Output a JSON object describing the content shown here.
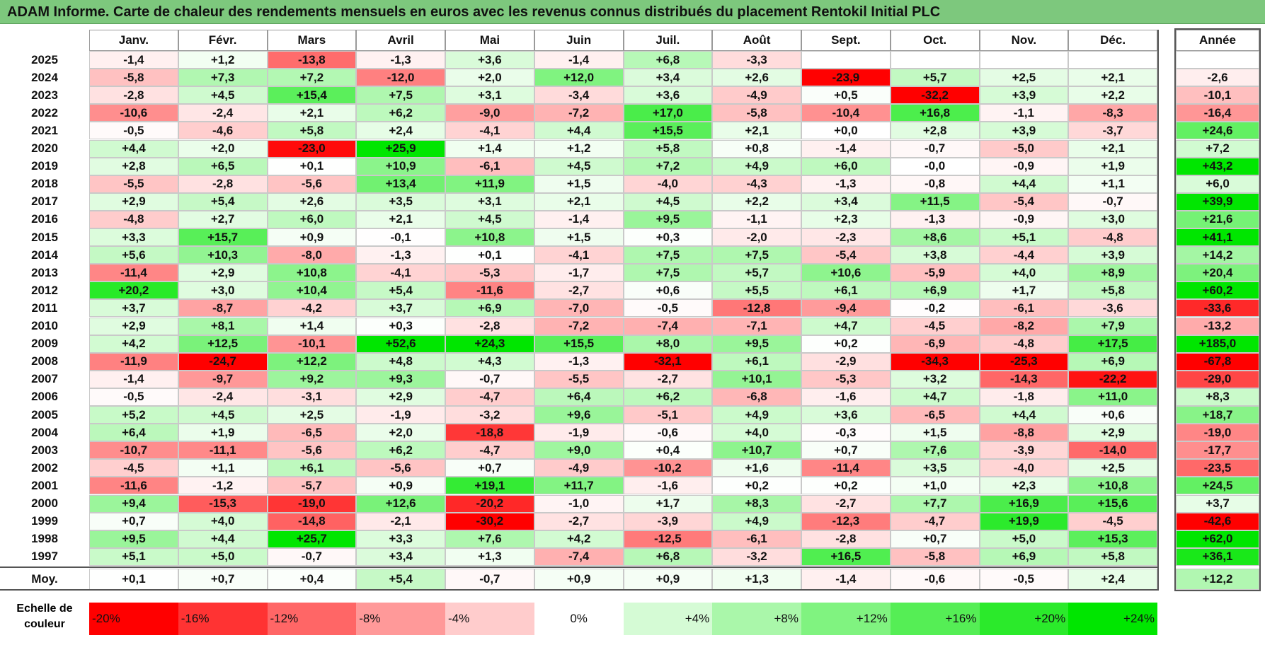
{
  "title": "ADAM Informe. Carte de chaleur des rendements mensuels en euros avec les revenus connus distribués du placement Rentokil Initial PLC",
  "chart_data": {
    "type": "heatmap",
    "title": "ADAM Informe. Carte de chaleur des rendements mensuels en euros avec les revenus connus distribués du placement Rentokil Initial PLC",
    "months": [
      "Janv.",
      "Févr.",
      "Mars",
      "Avril",
      "Mai",
      "Juin",
      "Juil.",
      "Août",
      "Sept.",
      "Oct.",
      "Nov.",
      "Déc."
    ],
    "annual_label": "Année",
    "average_label": "Moy.",
    "rows": [
      {
        "year": "2025",
        "values": [
          "-1,4",
          "+1,2",
          "-13,8",
          "-1,3",
          "+3,6",
          "-1,4",
          "+6,8",
          "-3,3",
          "",
          "",
          "",
          ""
        ],
        "annual": ""
      },
      {
        "year": "2024",
        "values": [
          "-5,8",
          "+7,3",
          "+7,2",
          "-12,0",
          "+2,0",
          "+12,0",
          "+3,4",
          "+2,6",
          "-23,9",
          "+5,7",
          "+2,5",
          "+2,1"
        ],
        "annual": "-2,6"
      },
      {
        "year": "2023",
        "values": [
          "-2,8",
          "+4,5",
          "+15,4",
          "+7,5",
          "+3,1",
          "-3,4",
          "+3,6",
          "-4,9",
          "+0,5",
          "-32,2",
          "+3,9",
          "+2,2"
        ],
        "annual": "-10,1"
      },
      {
        "year": "2022",
        "values": [
          "-10,6",
          "-2,4",
          "+2,1",
          "+6,2",
          "-9,0",
          "-7,2",
          "+17,0",
          "-5,8",
          "-10,4",
          "+16,8",
          "-1,1",
          "-8,3"
        ],
        "annual": "-16,4"
      },
      {
        "year": "2021",
        "values": [
          "-0,5",
          "-4,6",
          "+5,8",
          "+2,4",
          "-4,1",
          "+4,4",
          "+15,5",
          "+2,1",
          "+0,0",
          "+2,8",
          "+3,9",
          "-3,7"
        ],
        "annual": "+24,6"
      },
      {
        "year": "2020",
        "values": [
          "+4,4",
          "+2,0",
          "-23,0",
          "+25,9",
          "+1,4",
          "+1,2",
          "+5,8",
          "+0,8",
          "-1,4",
          "-0,7",
          "-5,0",
          "+2,1"
        ],
        "annual": "+7,2"
      },
      {
        "year": "2019",
        "values": [
          "+2,8",
          "+6,5",
          "+0,1",
          "+10,9",
          "-6,1",
          "+4,5",
          "+7,2",
          "+4,9",
          "+6,0",
          "-0,0",
          "-0,9",
          "+1,9"
        ],
        "annual": "+43,2"
      },
      {
        "year": "2018",
        "values": [
          "-5,5",
          "-2,8",
          "-5,6",
          "+13,4",
          "+11,9",
          "+1,5",
          "-4,0",
          "-4,3",
          "-1,3",
          "-0,8",
          "+4,4",
          "+1,1"
        ],
        "annual": "+6,0"
      },
      {
        "year": "2017",
        "values": [
          "+2,9",
          "+5,4",
          "+2,6",
          "+3,5",
          "+3,1",
          "+2,1",
          "+4,5",
          "+2,2",
          "+3,4",
          "+11,5",
          "-5,4",
          "-0,7"
        ],
        "annual": "+39,9"
      },
      {
        "year": "2016",
        "values": [
          "-4,8",
          "+2,7",
          "+6,0",
          "+2,1",
          "+4,5",
          "-1,4",
          "+9,5",
          "-1,1",
          "+2,3",
          "-1,3",
          "-0,9",
          "+3,0"
        ],
        "annual": "+21,6"
      },
      {
        "year": "2015",
        "values": [
          "+3,3",
          "+15,7",
          "+0,9",
          "-0,1",
          "+10,8",
          "+1,5",
          "+0,3",
          "-2,0",
          "-2,3",
          "+8,6",
          "+5,1",
          "-4,8"
        ],
        "annual": "+41,1"
      },
      {
        "year": "2014",
        "values": [
          "+5,6",
          "+10,3",
          "-8,0",
          "-1,3",
          "+0,1",
          "-4,1",
          "+7,5",
          "+7,5",
          "-5,4",
          "+3,8",
          "-4,4",
          "+3,9"
        ],
        "annual": "+14,2"
      },
      {
        "year": "2013",
        "values": [
          "-11,4",
          "+2,9",
          "+10,8",
          "-4,1",
          "-5,3",
          "-1,7",
          "+7,5",
          "+5,7",
          "+10,6",
          "-5,9",
          "+4,0",
          "+8,9"
        ],
        "annual": "+20,4"
      },
      {
        "year": "2012",
        "values": [
          "+20,2",
          "+3,0",
          "+10,4",
          "+5,4",
          "-11,6",
          "-2,7",
          "+0,6",
          "+5,5",
          "+6,1",
          "+6,9",
          "+1,7",
          "+5,8"
        ],
        "annual": "+60,2"
      },
      {
        "year": "2011",
        "values": [
          "+3,7",
          "-8,7",
          "-4,2",
          "+3,7",
          "+6,9",
          "-7,0",
          "-0,5",
          "-12,8",
          "-9,4",
          "-0,2",
          "-6,1",
          "-3,6"
        ],
        "annual": "-33,6"
      },
      {
        "year": "2010",
        "values": [
          "+2,9",
          "+8,1",
          "+1,4",
          "+0,3",
          "-2,8",
          "-7,2",
          "-7,4",
          "-7,1",
          "+4,7",
          "-4,5",
          "-8,2",
          "+7,9"
        ],
        "annual": "-13,2"
      },
      {
        "year": "2009",
        "values": [
          "+4,2",
          "+12,5",
          "-10,1",
          "+52,6",
          "+24,3",
          "+15,5",
          "+8,0",
          "+9,5",
          "+0,2",
          "-6,9",
          "-4,8",
          "+17,5"
        ],
        "annual": "+185,0"
      },
      {
        "year": "2008",
        "values": [
          "-11,9",
          "-24,7",
          "+12,2",
          "+4,8",
          "+4,3",
          "-1,3",
          "-32,1",
          "+6,1",
          "-2,9",
          "-34,3",
          "-25,3",
          "+6,9"
        ],
        "annual": "-67,8"
      },
      {
        "year": "2007",
        "values": [
          "-1,4",
          "-9,7",
          "+9,2",
          "+9,3",
          "-0,7",
          "-5,5",
          "-2,7",
          "+10,1",
          "-5,3",
          "+3,2",
          "-14,3",
          "-22,2"
        ],
        "annual": "-29,0"
      },
      {
        "year": "2006",
        "values": [
          "-0,5",
          "-2,4",
          "-3,1",
          "+2,9",
          "-4,7",
          "+6,4",
          "+6,2",
          "-6,8",
          "-1,6",
          "+4,7",
          "-1,8",
          "+11,0"
        ],
        "annual": "+8,3"
      },
      {
        "year": "2005",
        "values": [
          "+5,2",
          "+4,5",
          "+2,5",
          "-1,9",
          "-3,2",
          "+9,6",
          "-5,1",
          "+4,9",
          "+3,6",
          "-6,5",
          "+4,4",
          "+0,6"
        ],
        "annual": "+18,7"
      },
      {
        "year": "2004",
        "values": [
          "+6,4",
          "+1,9",
          "-6,5",
          "+2,0",
          "-18,8",
          "-1,9",
          "-0,6",
          "+4,0",
          "-0,3",
          "+1,5",
          "-8,8",
          "+2,9"
        ],
        "annual": "-19,0"
      },
      {
        "year": "2003",
        "values": [
          "-10,7",
          "-11,1",
          "-5,6",
          "+6,2",
          "-4,7",
          "+9,0",
          "+0,4",
          "+10,7",
          "+0,7",
          "+7,6",
          "-3,9",
          "-14,0"
        ],
        "annual": "-17,7"
      },
      {
        "year": "2002",
        "values": [
          "-4,5",
          "+1,1",
          "+6,1",
          "-5,6",
          "+0,7",
          "-4,9",
          "-10,2",
          "+1,6",
          "-11,4",
          "+3,5",
          "-4,0",
          "+2,5"
        ],
        "annual": "-23,5"
      },
      {
        "year": "2001",
        "values": [
          "-11,6",
          "-1,2",
          "-5,7",
          "+0,9",
          "+19,1",
          "+11,7",
          "-1,6",
          "+0,2",
          "+0,2",
          "+1,0",
          "+2,3",
          "+10,8"
        ],
        "annual": "+24,5"
      },
      {
        "year": "2000",
        "values": [
          "+9,4",
          "-15,3",
          "-19,0",
          "+12,6",
          "-20,2",
          "-1,0",
          "+1,7",
          "+8,3",
          "-2,7",
          "+7,7",
          "+16,9",
          "+15,6"
        ],
        "annual": "+3,7"
      },
      {
        "year": "1999",
        "values": [
          "+0,7",
          "+4,0",
          "-14,8",
          "-2,1",
          "-30,2",
          "-2,7",
          "-3,9",
          "+4,9",
          "-12,3",
          "-4,7",
          "+19,9",
          "-4,5"
        ],
        "annual": "-42,6"
      },
      {
        "year": "1998",
        "values": [
          "+9,5",
          "+4,4",
          "+25,7",
          "+3,3",
          "+7,6",
          "+4,2",
          "-12,5",
          "-6,1",
          "-2,8",
          "+0,7",
          "+5,0",
          "+15,3"
        ],
        "annual": "+62,0"
      },
      {
        "year": "1997",
        "values": [
          "+5,1",
          "+5,0",
          "-0,7",
          "+3,4",
          "+1,3",
          "-7,4",
          "+6,8",
          "-3,2",
          "+16,5",
          "-5,8",
          "+6,9",
          "+5,8"
        ],
        "annual": "+36,1"
      }
    ],
    "average": {
      "values": [
        "+0,1",
        "+0,7",
        "+0,4",
        "+5,4",
        "-0,7",
        "+0,9",
        "+0,9",
        "+1,3",
        "-1,4",
        "-0,6",
        "-0,5",
        "+2,4"
      ],
      "annual": "+12,2"
    },
    "color_scale": {
      "label_line1": "Echelle de",
      "label_line2": "couleur",
      "stops": [
        {
          "label": "-20%",
          "value": -20
        },
        {
          "label": "-16%",
          "value": -16
        },
        {
          "label": "-12%",
          "value": -12
        },
        {
          "label": "-8%",
          "value": -8
        },
        {
          "label": "-4%",
          "value": -4
        },
        {
          "label": "0%",
          "value": 0
        },
        {
          "label": "+4%",
          "value": 4
        },
        {
          "label": "+8%",
          "value": 8
        },
        {
          "label": "+12%",
          "value": 12
        },
        {
          "label": "+16%",
          "value": 16
        },
        {
          "label": "+20%",
          "value": 20
        },
        {
          "label": "+24%",
          "value": 24
        }
      ],
      "negative_color": "#ff0000",
      "neutral_color": "#ffffff",
      "positive_color": "#00e600"
    }
  }
}
